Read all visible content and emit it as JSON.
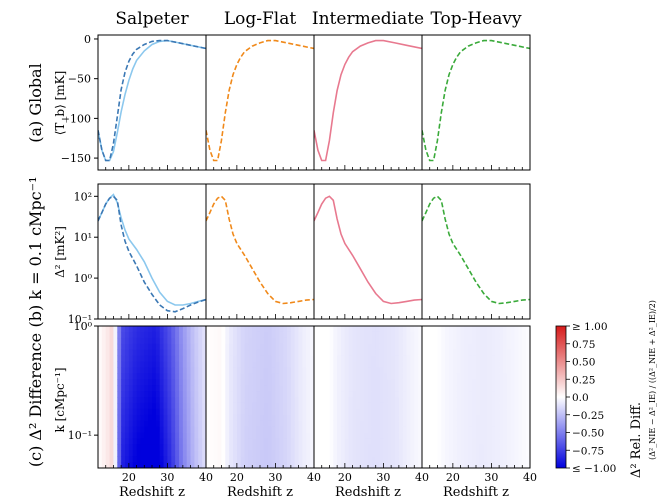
{
  "columns": [
    "Salpeter",
    "Log-Flat",
    "Intermediate",
    "Top-Heavy"
  ],
  "series_colors": {
    "Salpeter": "#3b78b4",
    "Salpeter_alt": "#8cc8ee",
    "Log-Flat": "#f0891a",
    "Intermediate": "#e8798f",
    "Top-Heavy": "#3aaa3a"
  },
  "row_labels": {
    "a": "(a) Global",
    "b": "(b) k = 0.1 cMpc⁻¹",
    "c": "(c) Δ² Difference"
  },
  "y_labels": {
    "a": "⟨T_b⟩ [mK]",
    "b": "Δ² [mK²]",
    "c": "k [cMpc⁻¹]"
  },
  "x_label": "Redshift z",
  "colorbar": {
    "label": "Δ² Rel. Diff.",
    "formula": "(Δ²_NIE − Δ²_IE) / ((Δ²_NIE + Δ²_IE)/2)",
    "ticks": [
      "≥ 1.00",
      "0.75",
      "0.50",
      "0.25",
      "0.0",
      "−0.25",
      "−0.50",
      "−0.75",
      "≤ −1.00"
    ]
  },
  "chart_data": [
    {
      "type": "line",
      "panel": "a",
      "xlim": [
        12,
        40
      ],
      "ylim": [
        -165,
        5
      ],
      "xticks": [
        20,
        30,
        40
      ],
      "yticks": [
        0,
        -50,
        -100,
        -150
      ],
      "series": [
        {
          "name": "Salpeter",
          "style": "dashed",
          "x": [
            12,
            13,
            14,
            15,
            16,
            17,
            18,
            19,
            20,
            21,
            22,
            24,
            26,
            28,
            30,
            33,
            36,
            40
          ],
          "y": [
            -115,
            -140,
            -153,
            -153,
            -132,
            -98,
            -64,
            -42,
            -28,
            -19,
            -13,
            -7,
            -3,
            -2,
            -2,
            -5,
            -8,
            -12
          ]
        },
        {
          "name": "Salpeter (alt)",
          "style": "solid",
          "x": [
            12,
            13,
            14,
            15,
            16,
            17,
            18,
            19,
            20,
            21,
            22,
            24,
            26,
            28,
            30,
            33,
            36,
            40
          ],
          "y": [
            -115,
            -140,
            -153,
            -153,
            -142,
            -118,
            -92,
            -70,
            -52,
            -38,
            -27,
            -15,
            -7,
            -3,
            -2,
            -5,
            -8,
            -12
          ]
        },
        {
          "name": "Log-Flat",
          "style": "dashed",
          "x": [
            12,
            13,
            14,
            15,
            16,
            17,
            18,
            19,
            20,
            21,
            22,
            24,
            26,
            28,
            30,
            33,
            36,
            40
          ],
          "y": [
            -115,
            -140,
            -153,
            -153,
            -128,
            -93,
            -65,
            -45,
            -32,
            -23,
            -16,
            -9,
            -5,
            -2,
            -2,
            -5,
            -8,
            -12
          ]
        },
        {
          "name": "Intermediate",
          "style": "solid",
          "x": [
            12,
            13,
            14,
            15,
            16,
            17,
            18,
            19,
            20,
            21,
            22,
            24,
            26,
            28,
            30,
            33,
            36,
            40
          ],
          "y": [
            -115,
            -140,
            -153,
            -153,
            -128,
            -93,
            -65,
            -45,
            -32,
            -23,
            -16,
            -9,
            -5,
            -2,
            -2,
            -5,
            -8,
            -12
          ]
        },
        {
          "name": "Top-Heavy",
          "style": "dashed",
          "x": [
            12,
            13,
            14,
            15,
            16,
            17,
            18,
            19,
            20,
            21,
            22,
            24,
            26,
            28,
            30,
            33,
            36,
            40
          ],
          "y": [
            -115,
            -140,
            -153,
            -153,
            -128,
            -93,
            -65,
            -45,
            -32,
            -23,
            -16,
            -9,
            -5,
            -2,
            -2,
            -5,
            -8,
            -12
          ]
        }
      ]
    },
    {
      "type": "line",
      "panel": "b",
      "xlim": [
        12,
        40
      ],
      "ylim": [
        0.1,
        200
      ],
      "yscale": "log",
      "ytick_labels": [
        "10²",
        "10¹",
        "10⁰",
        "10⁻¹"
      ],
      "series": [
        {
          "name": "Salpeter",
          "style": "dashed",
          "x": [
            12,
            13,
            14,
            15,
            16,
            17,
            18,
            19,
            20,
            22,
            24,
            26,
            28,
            30,
            32,
            34,
            36,
            38,
            40
          ],
          "y": [
            25,
            40,
            65,
            90,
            100,
            80,
            20,
            8,
            4.5,
            2,
            0.8,
            0.4,
            0.22,
            0.16,
            0.15,
            0.18,
            0.22,
            0.26,
            0.3
          ]
        },
        {
          "name": "Salpeter (alt)",
          "style": "solid",
          "x": [
            12,
            13,
            14,
            15,
            16,
            17,
            18,
            19,
            20,
            22,
            24,
            26,
            28,
            30,
            32,
            34,
            36,
            38,
            40
          ],
          "y": [
            25,
            40,
            65,
            90,
            110,
            70,
            30,
            15,
            9,
            5,
            2.5,
            1,
            0.45,
            0.27,
            0.22,
            0.22,
            0.24,
            0.27,
            0.3
          ]
        },
        {
          "name": "Log-Flat",
          "style": "dashed",
          "x": [
            12,
            13,
            14,
            15,
            16,
            17,
            18,
            19,
            20,
            22,
            24,
            26,
            28,
            30,
            32,
            34,
            36,
            38,
            40
          ],
          "y": [
            25,
            40,
            65,
            90,
            100,
            80,
            28,
            12,
            7,
            3.6,
            1.7,
            0.8,
            0.42,
            0.27,
            0.24,
            0.25,
            0.27,
            0.29,
            0.3
          ]
        },
        {
          "name": "Intermediate",
          "style": "solid",
          "x": [
            12,
            13,
            14,
            15,
            16,
            17,
            18,
            19,
            20,
            22,
            24,
            26,
            28,
            30,
            32,
            34,
            36,
            38,
            40
          ],
          "y": [
            25,
            40,
            65,
            90,
            100,
            80,
            28,
            12,
            7,
            3.6,
            1.7,
            0.8,
            0.42,
            0.27,
            0.24,
            0.25,
            0.27,
            0.29,
            0.3
          ]
        },
        {
          "name": "Top-Heavy",
          "style": "dashed",
          "x": [
            12,
            13,
            14,
            15,
            16,
            17,
            18,
            19,
            20,
            22,
            24,
            26,
            28,
            30,
            32,
            34,
            36,
            38,
            40
          ],
          "y": [
            25,
            40,
            65,
            90,
            100,
            80,
            28,
            12,
            7,
            3.6,
            1.7,
            0.8,
            0.42,
            0.27,
            0.24,
            0.25,
            0.27,
            0.29,
            0.3
          ]
        }
      ]
    },
    {
      "type": "heatmap",
      "panel": "c",
      "xlim": [
        12,
        40
      ],
      "ylim": [
        0.05,
        1.0
      ],
      "yscale": "log",
      "ytick_labels": [
        "10⁰",
        "10⁻¹"
      ],
      "zrange": [
        -1,
        1
      ],
      "panels": [
        {
          "name": "Salpeter",
          "x_profile": [
            [
              12,
              0.0
            ],
            [
              15,
              0.12
            ],
            [
              16,
              0.2
            ],
            [
              17,
              -0.3
            ],
            [
              18,
              -0.7
            ],
            [
              22,
              -0.82
            ],
            [
              27,
              -0.88
            ],
            [
              31,
              -0.65
            ],
            [
              34,
              -0.4
            ],
            [
              37,
              -0.22
            ],
            [
              40,
              -0.1
            ]
          ],
          "low_k_boost": 0.15
        },
        {
          "name": "Log-Flat",
          "x_profile": [
            [
              12,
              0.0
            ],
            [
              16,
              0.03
            ],
            [
              18,
              -0.08
            ],
            [
              22,
              -0.17
            ],
            [
              28,
              -0.2
            ],
            [
              33,
              -0.15
            ],
            [
              37,
              -0.07
            ],
            [
              40,
              -0.03
            ]
          ],
          "low_k_boost": 0.05
        },
        {
          "name": "Intermediate",
          "x_profile": [
            [
              12,
              0.0
            ],
            [
              16,
              0.0
            ],
            [
              18,
              -0.05
            ],
            [
              22,
              -0.1
            ],
            [
              28,
              -0.12
            ],
            [
              33,
              -0.1
            ],
            [
              37,
              -0.05
            ],
            [
              40,
              -0.02
            ]
          ],
          "low_k_boost": 0.03
        },
        {
          "name": "Top-Heavy",
          "x_profile": [
            [
              12,
              0.0
            ],
            [
              16,
              0.0
            ],
            [
              18,
              -0.03
            ],
            [
              22,
              -0.06
            ],
            [
              28,
              -0.08
            ],
            [
              33,
              -0.06
            ],
            [
              37,
              -0.03
            ],
            [
              40,
              -0.01
            ]
          ],
          "low_k_boost": 0.02
        }
      ]
    }
  ]
}
